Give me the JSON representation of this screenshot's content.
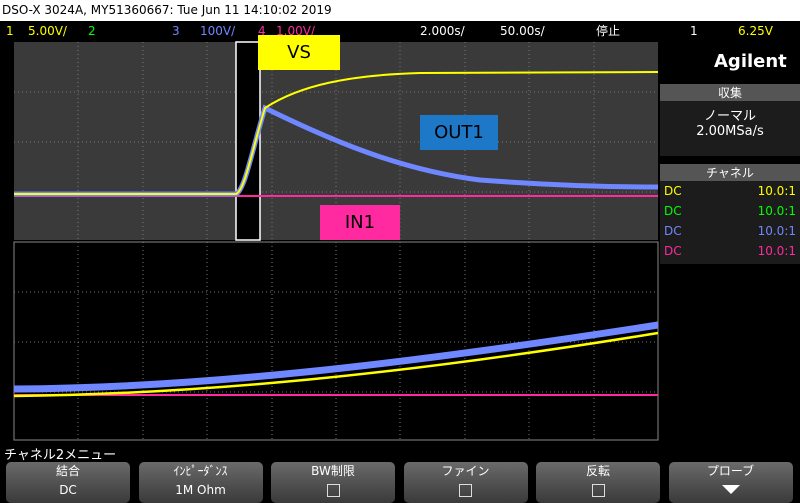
{
  "header": {
    "title": "DSO-X 3024A, MY51360667: Tue Jun 11 14:10:02 2019"
  },
  "status_bar": {
    "channels": [
      {
        "number": "1",
        "scale": "5.00V/"
      },
      {
        "number": "2"
      },
      {
        "number": "3",
        "scale": "100V/"
      },
      {
        "number": "4",
        "scale": "1.00V/"
      }
    ],
    "time_scale": "2.000s/",
    "zoom_scale": "50.00s/",
    "run_state": "停止",
    "trigger_source": "1",
    "trigger_level": "6.25V"
  },
  "annotations": {
    "vs": "VS",
    "out1": "OUT1",
    "in1": "IN1"
  },
  "side_panel": {
    "brand": "Agilent",
    "acquire_title": "収集",
    "acquire_mode": "ノーマル",
    "sample_rate": "2.00MSa/s",
    "channels_title": "チャネル",
    "channels": [
      {
        "coupling": "DC",
        "probe": "10.0:1"
      },
      {
        "coupling": "DC",
        "probe": "10.0:1"
      },
      {
        "coupling": "DC",
        "probe": "10.0:1"
      },
      {
        "coupling": "DC",
        "probe": "10.0:1"
      }
    ]
  },
  "menu": {
    "title": "チャネル2メニュー",
    "softkeys": [
      {
        "label": "結合",
        "value": "DC"
      },
      {
        "label": "ｲﾝﾋﾟｰﾀﾞﾝｽ",
        "value": "1M Ohm"
      },
      {
        "label": "BW制限"
      },
      {
        "label": "ファイン"
      },
      {
        "label": "反転"
      },
      {
        "label": "プローブ"
      }
    ]
  }
}
